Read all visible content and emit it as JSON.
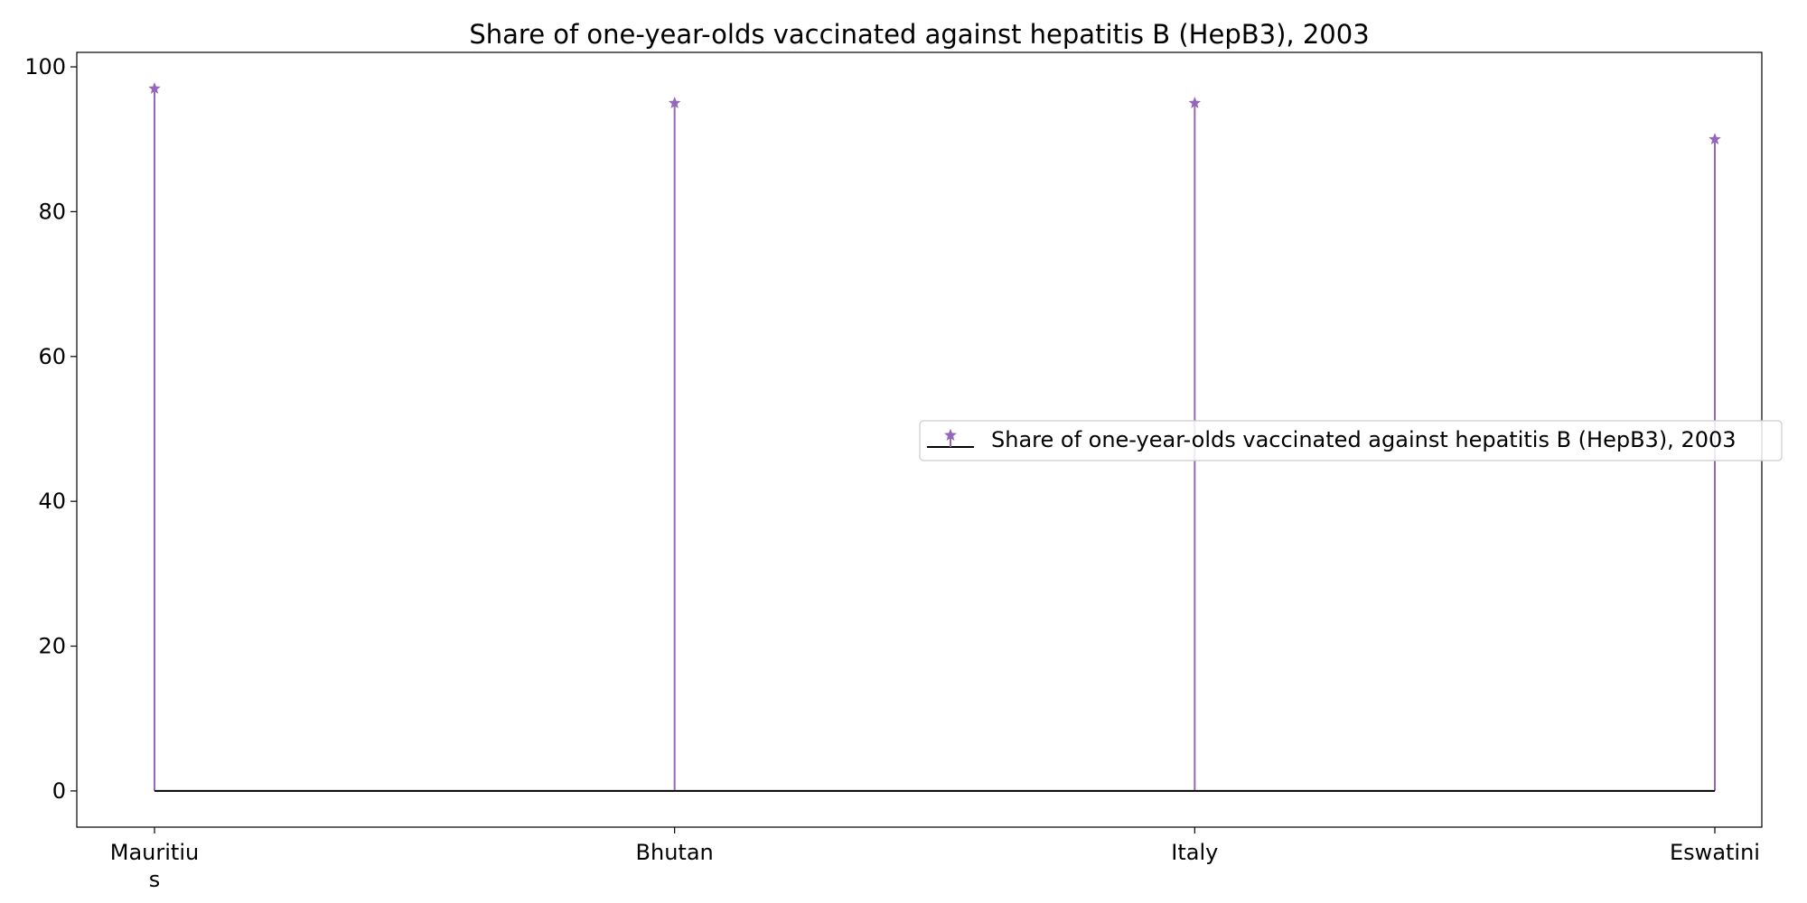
{
  "chart_data": {
    "type": "stem",
    "title": "Share of one-year-olds vaccinated against hepatitis B (HepB3), 2003",
    "xlabel": "",
    "ylabel": "",
    "categories": [
      [
        "Mauritiu",
        "s"
      ],
      [
        "Bhutan"
      ],
      [
        "Italy"
      ],
      [
        "Eswatini"
      ]
    ],
    "series": [
      {
        "name": "Share of one-year-olds vaccinated against hepatitis B (HepB3), 2003",
        "values": [
          97,
          95,
          95,
          90
        ],
        "color": "#9467bd",
        "marker": "star"
      }
    ],
    "baseline": 0,
    "baseline_color": "#000000",
    "ylim": [
      -5,
      102
    ],
    "yticks": [
      0,
      20,
      40,
      60,
      80,
      100
    ],
    "grid": false,
    "legend_position": "center-right"
  }
}
